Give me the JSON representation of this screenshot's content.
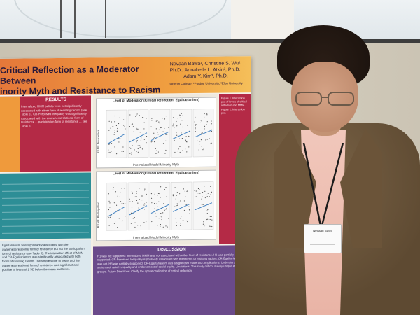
{
  "poster": {
    "title_line1": "Critical Reflection as a Moderator Between",
    "title_line2": "inority Myth and Resistance to Racism",
    "authors_line1": "Nevaan Bawa¹, Christine S. Wu¹,",
    "authors_line2": "Ph.D., Annabelle L. Atkin², Ph.D.,",
    "authors_line3": "Adam Y. Kim³, Ph.D.",
    "affiliations": "¹Oberlin College, ²Purdue University, ³Elon University",
    "results_heading": "RESULTS",
    "results_text": "Internalized MMM beliefs were not significantly associated with either form of resisting racism (see Table 3). CR-Perceived Inequality was significantly associated with the awareness/relational form of resistance ... participation form of resistance ... see Table 3.",
    "discussion_heading": "DISCUSSION",
    "discussion_text": "H1 was not supported: internalized MMM was not associated with either form of resistance. H2 was partially supported: CR-Perceived Inequality is positively associated with both forms of resisting racism; CR-Egalitarianism was not. H3 was partially supported: CR-Egalitarianism was a significant moderator. Implications: Understanding systems of racial inequality and endorsement of social equity. Limitations: This study did not survey unique ethnic groups. Future Directions: Clarify the operationalization of critical reflection.",
    "para_text": "Egalitarianism was significantly associated with the awareness/relational form of resistance but not the participation form of resistance (see Table 3). The interaction effect of MMM and CR-Egalitarianism was significantly associated with both forms of resisting racism. The simple slope of MMM and the awareness/relational form of resistance was significant and positive at levels of 1 SD below the mean and lower.",
    "side_text": "Figure 1. Interaction plot of levels of critical reflection and MMM. Figure 2. Interaction plot.",
    "plot1_title": "Level of Moderator (Critical Reflection: Egalitarianism)",
    "plot1_xlabel": "Internalized Model Minority Myth",
    "plot1_ylabel": "REAR: Awareness",
    "plot2_title": "Level of Moderator (Critical Reflection: Egalitarianism)",
    "plot2_xlabel": "Internalized Model Minority Myth",
    "plot2_ylabel": "REAR: Participation"
  },
  "badge": {
    "name": "Nevaan Bawa"
  },
  "colors": {
    "header": "#e5783a",
    "results": "#b42a46",
    "table": "#2d8e96",
    "discussion": "#6a4a8a",
    "jacket": "#6b5439"
  }
}
